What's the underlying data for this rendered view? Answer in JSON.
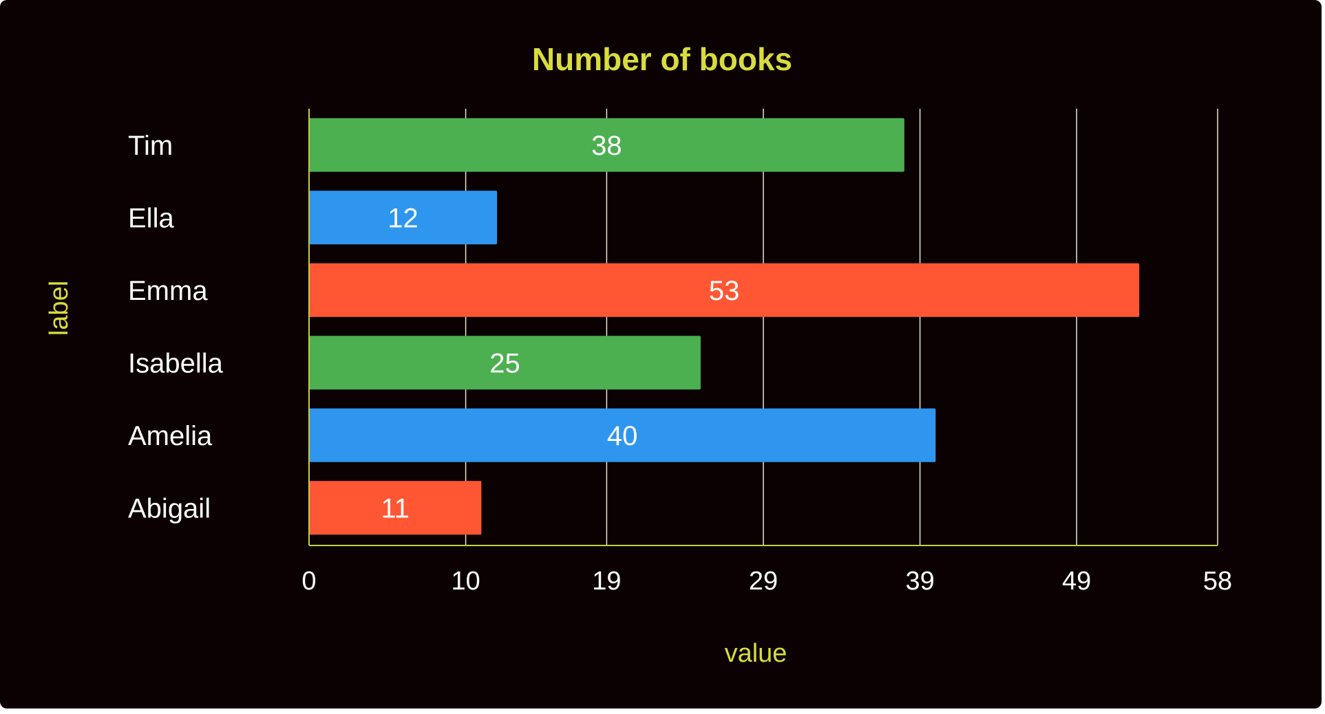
{
  "colors": {
    "background": "#0b0102",
    "title": "#d8dc3e",
    "axis_title": "#d8dc3e",
    "text": "#ffffff",
    "grid": "#e8e8d0",
    "axis_line": "#c9cf3a"
  },
  "chart_data": {
    "type": "bar",
    "orientation": "horizontal",
    "title": "Number of books",
    "xlabel": "value",
    "ylabel": "label",
    "categories": [
      "Tim",
      "Ella",
      "Emma",
      "Isabella",
      "Amelia",
      "Abigail"
    ],
    "values": [
      38,
      12,
      53,
      25,
      40,
      11
    ],
    "bar_colors": [
      "#4caf50",
      "#2e96ee",
      "#ff5733",
      "#4caf50",
      "#2e96ee",
      "#ff5733"
    ],
    "x_ticks": [
      "0",
      "10",
      "19",
      "29",
      "39",
      "49",
      "58"
    ],
    "xlim": [
      0,
      58
    ],
    "grid": true,
    "data_labels": true
  }
}
